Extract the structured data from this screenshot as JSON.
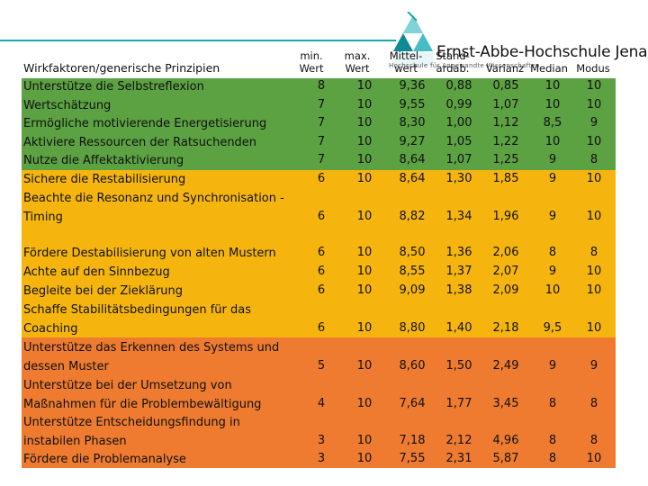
{
  "colors": {
    "green": "#5ca142",
    "yellow": "#f5b50e",
    "orange": "#ee7b30",
    "teal": "#1aa7b0"
  },
  "brand": {
    "name": "Ernst-Abbe-Hochschule Jena",
    "tagline": "Hochschule für Angewandte Wissenschaften"
  },
  "header": {
    "title": "Wirkfaktoren/generische Prinzipien",
    "min": "min. Wert",
    "max": "max. Wert",
    "mean": "Mittel-wert",
    "sd": "Stand-ardab.",
    "var": "Varianz",
    "median": "Median",
    "mode": "Modus"
  },
  "rows": [
    {
      "label": "Unterstütze die Selbstreflexion",
      "min": "8",
      "max": "10",
      "mean": "9,36",
      "sd": "0,88",
      "var": "0,85",
      "median": "10",
      "mode": "10",
      "color": "green"
    },
    {
      "label": "Wertschätzung",
      "min": "7",
      "max": "10",
      "mean": "9,55",
      "sd": "0,99",
      "var": "1,07",
      "median": "10",
      "mode": "10",
      "color": "green"
    },
    {
      "label": "Ermögliche motivierende Energetisierung",
      "min": "7",
      "max": "10",
      "mean": "8,30",
      "sd": "1,00",
      "var": "1,12",
      "median": "8,5",
      "mode": "9",
      "color": "green"
    },
    {
      "label": "Aktiviere Ressourcen der Ratsuchenden",
      "min": "7",
      "max": "10",
      "mean": "9,27",
      "sd": "1,05",
      "var": "1,22",
      "median": "10",
      "mode": "10",
      "color": "green"
    },
    {
      "label": "Nutze die Affektaktivierung",
      "min": "7",
      "max": "10",
      "mean": "8,64",
      "sd": "1,07",
      "var": "1,25",
      "median": "9",
      "mode": "8",
      "color": "green"
    },
    {
      "label": "Sichere die Restabilisierung",
      "min": "6",
      "max": "10",
      "mean": "8,64",
      "sd": "1,30",
      "var": "1,85",
      "median": "9",
      "mode": "10",
      "color": "yellow"
    },
    {
      "label": "Beachte die Resonanz und Synchronisation - Timing",
      "label1": "Beachte die Resonanz und Synchronisation -",
      "label2": "Timing",
      "min": "6",
      "max": "10",
      "mean": "8,82",
      "sd": "1,34",
      "var": "1,96",
      "median": "9",
      "mode": "10",
      "color": "yellow"
    },
    {
      "label": "Fördere Destabilisierung von alten Mustern",
      "min": "6",
      "max": "10",
      "mean": "8,50",
      "sd": "1,36",
      "var": "2,06",
      "median": "8",
      "mode": "8",
      "color": "yellow"
    },
    {
      "label": "Achte auf den Sinnbezug",
      "min": "6",
      "max": "10",
      "mean": "8,55",
      "sd": "1,37",
      "var": "2,07",
      "median": "9",
      "mode": "10",
      "color": "yellow"
    },
    {
      "label": "Begleite bei der Zieklärung",
      "min": "6",
      "max": "10",
      "mean": "9,09",
      "sd": "1,38",
      "var": "2,09",
      "median": "10",
      "mode": "10",
      "color": "yellow"
    },
    {
      "label": "Schaffe Stabilitätsbedingungen für das Coaching",
      "label1": "Schaffe Stabilitätsbedingungen für das",
      "label2": "Coaching",
      "min": "6",
      "max": "10",
      "mean": "8,80",
      "sd": "1,40",
      "var": "2,18",
      "median": "9,5",
      "mode": "10",
      "color": "yellow"
    },
    {
      "label": "Unterstütze das Erkennen des Systems und dessen Muster",
      "label1": "Unterstütze das Erkennen des Systems und",
      "label2": "dessen Muster",
      "min": "5",
      "max": "10",
      "mean": "8,60",
      "sd": "1,50",
      "var": "2,49",
      "median": "9",
      "mode": "9",
      "color": "orange"
    },
    {
      "label": "Unterstütze bei der Umsetzung von Maßnahmen für die Problembewältigung",
      "label1": "Unterstütze bei der Umsetzung von",
      "label2": "Maßnahmen für die Problembewältigung",
      "min": "4",
      "max": "10",
      "mean": "7,64",
      "sd": "1,77",
      "var": "3,45",
      "median": "8",
      "mode": "8",
      "color": "orange"
    },
    {
      "label": "Unterstütze Entscheidungsfindung in instabilen Phasen",
      "label1": "Unterstütze Entscheidungsfindung in",
      "label2": "instabilen Phasen",
      "min": "3",
      "max": "10",
      "mean": "7,18",
      "sd": "2,12",
      "var": "4,96",
      "median": "8",
      "mode": "8",
      "color": "orange"
    },
    {
      "label": "Fördere die Problemanalyse",
      "min": "3",
      "max": "10",
      "mean": "7,55",
      "sd": "2,31",
      "var": "5,87",
      "median": "8",
      "mode": "10",
      "color": "orange"
    }
  ]
}
